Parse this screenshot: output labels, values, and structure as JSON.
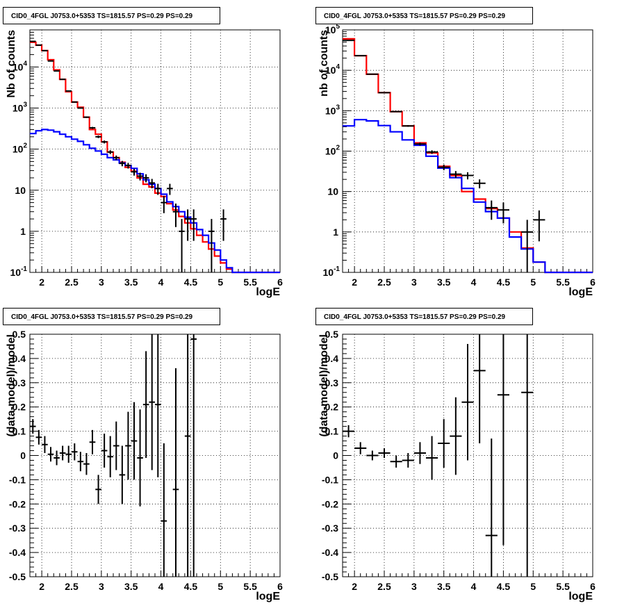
{
  "chart_data": [
    {
      "type": "line",
      "title": "CID0_4FGL J0753.0+5353 TS=1815.57 PS=0.29 PS=0.29",
      "xlabel": "logE",
      "ylabel": "Nb of counts",
      "xlim": [
        1.8,
        6
      ],
      "ylim": [
        0.1,
        80000
      ],
      "yscale": "log",
      "grid": true,
      "x_ticks": [
        "2",
        "2.5",
        "3",
        "3.5",
        "4",
        "4.5",
        "5",
        "5.5",
        "6"
      ],
      "y_ticks": [
        "10^-1",
        "1",
        "10",
        "10^2",
        "10^3",
        "10^4"
      ],
      "series": [
        {
          "role": "total model",
          "color": "#ff0000",
          "edges": [
            1.8,
            1.9,
            2.0,
            2.1,
            2.2,
            2.3,
            2.4,
            2.5,
            2.6,
            2.7,
            2.8,
            2.9,
            3.0,
            3.1,
            3.2,
            3.3,
            3.4,
            3.5,
            3.6,
            3.7,
            3.8,
            3.9,
            4.0,
            4.1,
            4.2,
            4.3,
            4.4,
            4.5,
            4.6,
            4.7,
            4.8,
            4.9,
            5.0,
            5.1,
            5.2,
            5.3,
            5.4,
            5.5,
            5.6,
            5.7,
            5.8,
            5.9,
            6.0
          ],
          "values": [
            40000,
            34000,
            25000,
            15000,
            8500,
            5000,
            2500,
            1400,
            1050,
            600,
            300,
            230,
            150,
            85,
            62,
            48,
            36,
            29,
            20,
            14,
            12,
            8.5,
            7,
            4.7,
            3.3,
            2.3,
            1.6,
            1.15,
            0.8,
            0.55,
            0.37,
            0.25,
            0.17,
            0.12,
            0.1,
            0.1,
            0.1,
            0.1,
            0.1,
            0.1,
            0.1,
            0.1
          ]
        },
        {
          "role": "background",
          "color": "#0000ff",
          "edges": [
            1.8,
            1.9,
            2.0,
            2.1,
            2.2,
            2.3,
            2.4,
            2.5,
            2.6,
            2.7,
            2.8,
            2.9,
            3.0,
            3.1,
            3.2,
            3.3,
            3.4,
            3.5,
            3.6,
            3.7,
            3.8,
            3.9,
            4.0,
            4.1,
            4.2,
            4.3,
            4.4,
            4.5,
            4.6,
            4.7,
            4.8,
            4.9,
            5.0,
            5.1,
            5.2,
            5.3,
            5.4,
            5.5,
            5.6,
            5.7,
            5.8,
            5.9,
            6.0
          ],
          "values": [
            240,
            280,
            300,
            290,
            265,
            230,
            200,
            175,
            155,
            128,
            105,
            90,
            75,
            62,
            55,
            46,
            40,
            34,
            25,
            18,
            14,
            11,
            8,
            5.2,
            4,
            3,
            2.2,
            1.6,
            1.1,
            0.8,
            0.52,
            0.35,
            0.2,
            0.13,
            0.1,
            0.1,
            0.1,
            0.1,
            0.1,
            0.1,
            0.1,
            0.1
          ]
        }
      ],
      "points": [
        {
          "x": 1.85,
          "y": 42000
        },
        {
          "x": 1.95,
          "y": 34000
        },
        {
          "x": 2.05,
          "y": 25000
        },
        {
          "x": 2.15,
          "y": 14000
        },
        {
          "x": 2.25,
          "y": 8000
        },
        {
          "x": 2.35,
          "y": 5000
        },
        {
          "x": 2.45,
          "y": 2600
        },
        {
          "x": 2.55,
          "y": 1400
        },
        {
          "x": 2.65,
          "y": 1000
        },
        {
          "x": 2.75,
          "y": 600
        },
        {
          "x": 2.85,
          "y": 330
        },
        {
          "x": 2.95,
          "y": 200
        },
        {
          "x": 3.05,
          "y": 150
        },
        {
          "x": 3.15,
          "y": 85
        },
        {
          "x": 3.25,
          "y": 62
        },
        {
          "x": 3.35,
          "y": 45
        },
        {
          "x": 3.45,
          "y": 40
        },
        {
          "x": 3.55,
          "y": 28
        },
        {
          "x": 3.65,
          "y": 22
        },
        {
          "x": 3.75,
          "y": 20
        },
        {
          "x": 3.85,
          "y": 15
        },
        {
          "x": 3.95,
          "y": 11
        },
        {
          "x": 4.05,
          "y": 5
        },
        {
          "x": 4.15,
          "y": 11
        },
        {
          "x": 4.25,
          "y": 3
        },
        {
          "x": 4.35,
          "y": 1
        },
        {
          "x": 4.45,
          "y": 2
        },
        {
          "x": 4.55,
          "y": 2
        },
        {
          "x": 4.85,
          "y": 1
        },
        {
          "x": 5.05,
          "y": 2
        }
      ]
    },
    {
      "type": "line",
      "title": "CID0_4FGL J0753.0+5353 TS=1815.57 PS=0.29 PS=0.29",
      "xlabel": "logE",
      "ylabel": "nb of counts",
      "xlim": [
        1.8,
        6
      ],
      "ylim": [
        0.1,
        100000
      ],
      "yscale": "log",
      "grid": true,
      "x_ticks": [
        "2",
        "2.5",
        "3",
        "3.5",
        "4",
        "4.5",
        "5",
        "5.5",
        "6"
      ],
      "y_ticks": [
        "10^-1",
        "1",
        "10",
        "10^2",
        "10^3",
        "10^4",
        "10^5"
      ],
      "series": [
        {
          "role": "total model",
          "color": "#ff0000",
          "edges": [
            1.8,
            2.0,
            2.2,
            2.4,
            2.6,
            2.8,
            3.0,
            3.2,
            3.4,
            3.6,
            3.8,
            4.0,
            4.2,
            4.4,
            4.6,
            4.8,
            5.0,
            5.2,
            5.4,
            5.6,
            5.8,
            6.0
          ],
          "values": [
            60000,
            23000,
            8000,
            2800,
            950,
            420,
            160,
            90,
            42,
            25,
            10,
            6.5,
            3.8,
            2.2,
            1,
            0.4,
            0.18,
            0.1,
            0.1,
            0.1,
            0.1
          ]
        },
        {
          "role": "background",
          "color": "#0000ff",
          "edges": [
            1.8,
            2.0,
            2.2,
            2.4,
            2.6,
            2.8,
            3.0,
            3.2,
            3.4,
            3.6,
            3.8,
            4.0,
            4.2,
            4.4,
            4.6,
            4.8,
            5.0,
            5.2,
            5.4,
            5.6,
            5.8,
            6.0
          ],
          "values": [
            420,
            600,
            560,
            430,
            300,
            190,
            140,
            75,
            38,
            22,
            12,
            5.5,
            3.2,
            2.2,
            0.75,
            0.38,
            0.18,
            0.1,
            0.1,
            0.1,
            0.1
          ]
        }
      ],
      "points": [
        {
          "x": 1.9,
          "y": 55000
        },
        {
          "x": 2.1,
          "y": 23000
        },
        {
          "x": 2.3,
          "y": 8000
        },
        {
          "x": 2.5,
          "y": 2800
        },
        {
          "x": 2.7,
          "y": 950
        },
        {
          "x": 2.9,
          "y": 420
        },
        {
          "x": 3.1,
          "y": 150
        },
        {
          "x": 3.3,
          "y": 95
        },
        {
          "x": 3.5,
          "y": 40
        },
        {
          "x": 3.7,
          "y": 27
        },
        {
          "x": 3.9,
          "y": 25
        },
        {
          "x": 4.1,
          "y": 16
        },
        {
          "x": 4.3,
          "y": 4
        },
        {
          "x": 4.5,
          "y": 3.5
        },
        {
          "x": 4.9,
          "y": 1
        },
        {
          "x": 5.1,
          "y": 2
        }
      ]
    },
    {
      "type": "scatter",
      "title": "CID0_4FGL J0753.0+5353 TS=1815.57 PS=0.29 PS=0.29",
      "xlabel": "logE",
      "ylabel": "(data-model)/model",
      "xlim": [
        1.8,
        6
      ],
      "ylim": [
        -0.5,
        0.5
      ],
      "grid": true,
      "x_ticks": [
        "2",
        "2.5",
        "3",
        "3.5",
        "4",
        "4.5",
        "5",
        "5.5",
        "6"
      ],
      "y_ticks": [
        "-0.5",
        "-0.4",
        "-0.3",
        "-0.2",
        "-0.1",
        "0",
        "0.1",
        "0.2",
        "0.3",
        "0.4",
        "0.5"
      ],
      "points": [
        {
          "x": 1.85,
          "y": 0.12,
          "err": 0.03
        },
        {
          "x": 1.95,
          "y": 0.075,
          "err": 0.03
        },
        {
          "x": 2.05,
          "y": 0.045,
          "err": 0.035
        },
        {
          "x": 2.15,
          "y": 0.005,
          "err": 0.03
        },
        {
          "x": 2.25,
          "y": -0.01,
          "err": 0.03
        },
        {
          "x": 2.35,
          "y": 0.01,
          "err": 0.03
        },
        {
          "x": 2.45,
          "y": 0.005,
          "err": 0.035
        },
        {
          "x": 2.55,
          "y": 0.015,
          "err": 0.035
        },
        {
          "x": 2.65,
          "y": -0.025,
          "err": 0.04
        },
        {
          "x": 2.75,
          "y": -0.035,
          "err": 0.045
        },
        {
          "x": 2.85,
          "y": 0.055,
          "err": 0.05
        },
        {
          "x": 2.95,
          "y": -0.14,
          "err": 0.06
        },
        {
          "x": 3.05,
          "y": 0.02,
          "err": 0.07
        },
        {
          "x": 3.15,
          "y": -0.005,
          "err": 0.085
        },
        {
          "x": 3.25,
          "y": 0.04,
          "err": 0.1
        },
        {
          "x": 3.35,
          "y": -0.08,
          "err": 0.12
        },
        {
          "x": 3.45,
          "y": 0.04,
          "err": 0.14
        },
        {
          "x": 3.55,
          "y": 0.06,
          "err": 0.16
        },
        {
          "x": 3.65,
          "y": -0.01,
          "err": 0.2
        },
        {
          "x": 3.75,
          "y": 0.21,
          "err": 0.22
        },
        {
          "x": 3.85,
          "y": 0.22,
          "err": 0.28
        },
        {
          "x": 3.95,
          "y": 0.21,
          "err": 0.3
        },
        {
          "x": 4.05,
          "y": -0.27,
          "err": 0.32
        },
        {
          "x": 4.25,
          "y": -0.14,
          "err": 0.5
        },
        {
          "x": 4.45,
          "y": 0.08,
          "err": 0.6
        },
        {
          "x": 4.55,
          "y": 0.48,
          "err": 1.0
        }
      ]
    },
    {
      "type": "scatter",
      "title": "CID0_4FGL J0753.0+5353 TS=1815.57 PS=0.29 PS=0.29",
      "xlabel": "logE",
      "ylabel": "(data-model)/model",
      "xlim": [
        1.8,
        6
      ],
      "ylim": [
        -0.5,
        0.5
      ],
      "grid": true,
      "x_ticks": [
        "2",
        "2.5",
        "3",
        "3.5",
        "4",
        "4.5",
        "5",
        "5.5",
        "6"
      ],
      "y_ticks": [
        "-0.5",
        "-0.4",
        "-0.3",
        "-0.2",
        "-0.1",
        "0",
        "0.1",
        "0.2",
        "0.3",
        "0.4",
        "0.5"
      ],
      "points": [
        {
          "x": 1.9,
          "y": 0.1,
          "err": 0.025
        },
        {
          "x": 2.1,
          "y": 0.03,
          "err": 0.025
        },
        {
          "x": 2.3,
          "y": 0.0,
          "err": 0.02
        },
        {
          "x": 2.5,
          "y": 0.01,
          "err": 0.02
        },
        {
          "x": 2.7,
          "y": -0.025,
          "err": 0.025
        },
        {
          "x": 2.9,
          "y": -0.02,
          "err": 0.03
        },
        {
          "x": 3.1,
          "y": 0.01,
          "err": 0.045
        },
        {
          "x": 3.3,
          "y": -0.01,
          "err": 0.09
        },
        {
          "x": 3.5,
          "y": 0.05,
          "err": 0.1
        },
        {
          "x": 3.7,
          "y": 0.08,
          "err": 0.16
        },
        {
          "x": 3.9,
          "y": 0.22,
          "err": 0.24
        },
        {
          "x": 4.1,
          "y": 0.35,
          "err": 0.3
        },
        {
          "x": 4.3,
          "y": -0.33,
          "err": 0.4
        },
        {
          "x": 4.5,
          "y": 0.25,
          "err": 0.62
        },
        {
          "x": 4.9,
          "y": 0.26,
          "err": 1.0
        }
      ]
    }
  ]
}
